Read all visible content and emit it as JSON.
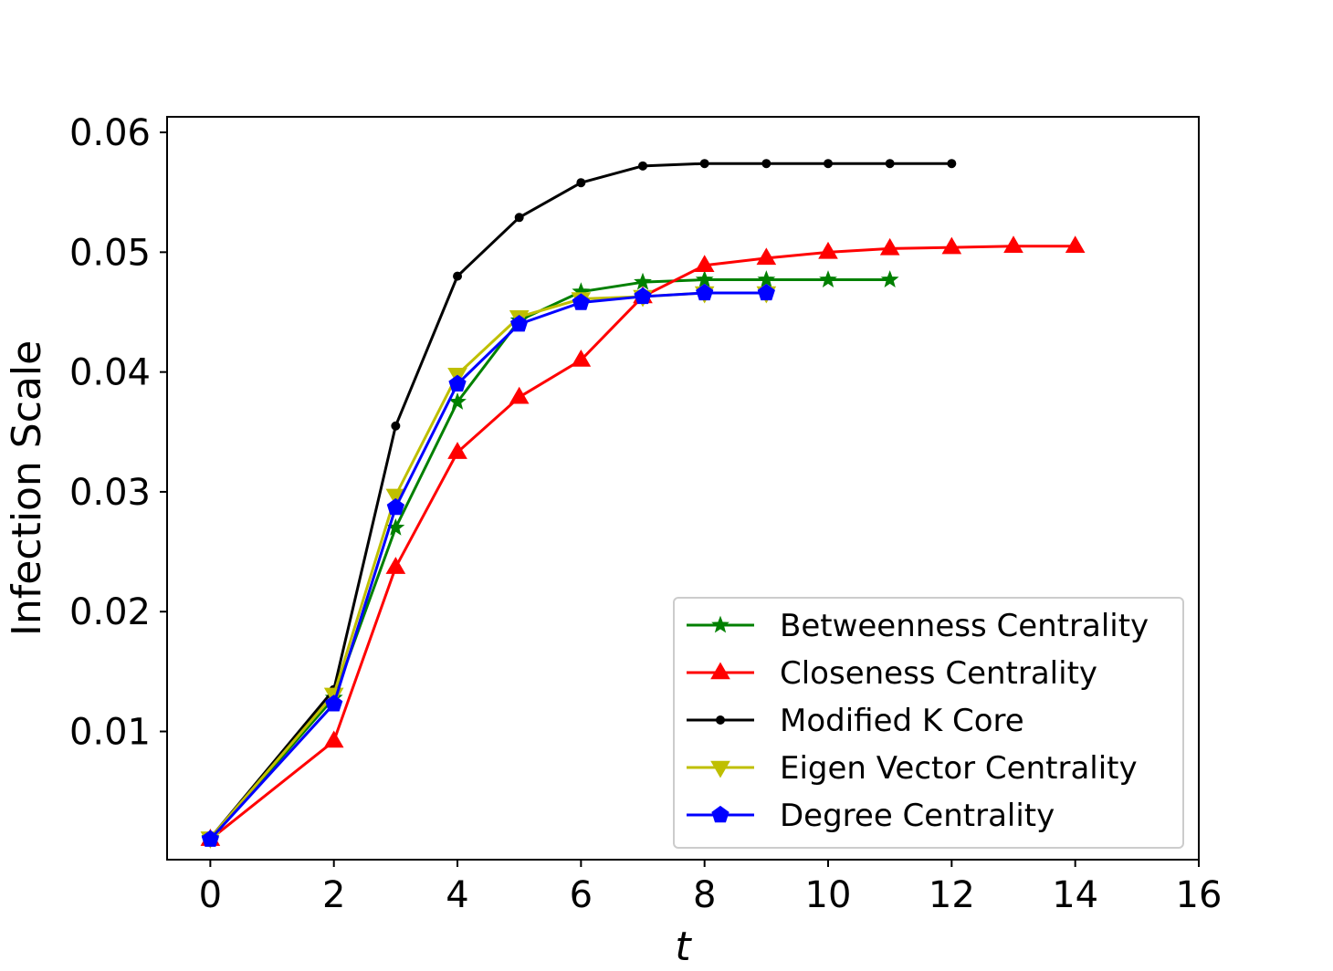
{
  "chart_data": {
    "type": "line",
    "title": "",
    "xlabel": "t",
    "ylabel": "Infection Scale",
    "xlim": [
      -0.7,
      16
    ],
    "ylim": [
      -0.0007,
      0.0613
    ],
    "xticks": [
      0,
      2,
      4,
      6,
      8,
      10,
      12,
      14,
      16
    ],
    "xtick_labels": [
      "0",
      "2",
      "4",
      "6",
      "8",
      "10",
      "12",
      "14",
      "16"
    ],
    "yticks": [
      0.01,
      0.02,
      0.03,
      0.04,
      0.05,
      0.06
    ],
    "ytick_labels": [
      "0.01",
      "0.02",
      "0.03",
      "0.04",
      "0.05",
      "0.06"
    ],
    "grid": false,
    "legend_position": "lower-right",
    "series": [
      {
        "name": "Betweenness Centrality",
        "color": "#008000",
        "marker": "star",
        "x": [
          0,
          2,
          3,
          4,
          5,
          6,
          7,
          8,
          9,
          10,
          11
        ],
        "y": [
          0.0011,
          0.0128,
          0.027,
          0.0375,
          0.0443,
          0.0467,
          0.0475,
          0.0477,
          0.0477,
          0.0477,
          0.0477
        ]
      },
      {
        "name": "Closeness Centrality",
        "color": "#ff0000",
        "marker": "triangle-up",
        "x": [
          0,
          2,
          3,
          4,
          5,
          6,
          7,
          8,
          9,
          10,
          11,
          12,
          13,
          14
        ],
        "y": [
          0.001,
          0.0092,
          0.0237,
          0.0333,
          0.0379,
          0.041,
          0.0463,
          0.0489,
          0.0495,
          0.05,
          0.0503,
          0.0504,
          0.0505,
          0.0505
        ]
      },
      {
        "name": "Modified K Core",
        "color": "#000000",
        "marker": "point",
        "x": [
          0,
          2,
          3,
          4,
          5,
          6,
          7,
          8,
          9,
          10,
          11,
          12
        ],
        "y": [
          0.0011,
          0.0135,
          0.0355,
          0.048,
          0.0529,
          0.0558,
          0.0572,
          0.0574,
          0.0574,
          0.0574,
          0.0574,
          0.0574
        ]
      },
      {
        "name": "Eigen Vector Centrality",
        "color": "#bfbf00",
        "marker": "triangle-down",
        "x": [
          0,
          2,
          3,
          4,
          5,
          6,
          7,
          8,
          9
        ],
        "y": [
          0.0011,
          0.0131,
          0.0297,
          0.0398,
          0.0446,
          0.0461,
          0.0463,
          0.0466,
          0.0466
        ]
      },
      {
        "name": "Degree Centrality",
        "color": "#0000ff",
        "marker": "pentagon",
        "x": [
          0,
          2,
          3,
          4,
          5,
          6,
          7,
          8,
          9
        ],
        "y": [
          0.001,
          0.0123,
          0.0287,
          0.039,
          0.044,
          0.0458,
          0.0463,
          0.0466,
          0.0466
        ]
      }
    ]
  }
}
